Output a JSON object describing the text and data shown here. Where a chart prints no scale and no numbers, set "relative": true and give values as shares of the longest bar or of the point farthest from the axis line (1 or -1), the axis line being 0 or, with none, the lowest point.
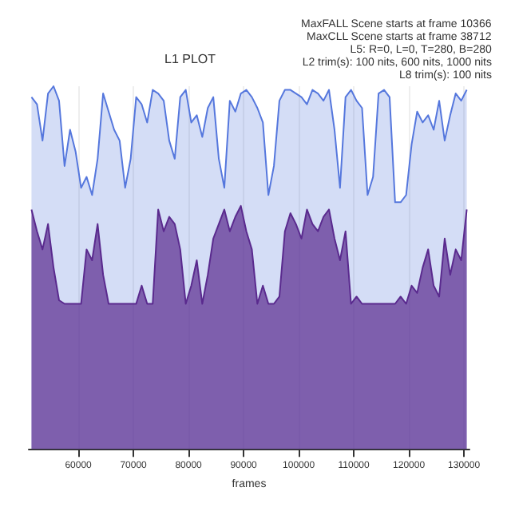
{
  "chart_data": {
    "type": "area",
    "title": "L1 PLOT",
    "xlabel": "frames",
    "relative": true,
    "annotations": [
      "MaxFALL Scene starts at frame 10366",
      "MaxCLL Scene starts at frame 38712",
      "L5: R=0, L=0, T=280, B=280",
      "L2 trim(s): 100 nits, 600 nits, 1000 nits",
      "L8 trim(s): 100 nits"
    ],
    "x": [
      51500,
      52500,
      53500,
      54500,
      55500,
      56500,
      57500,
      58500,
      59500,
      60500,
      61500,
      62500,
      63500,
      64500,
      65500,
      66500,
      67500,
      68500,
      69500,
      70500,
      71500,
      72500,
      73500,
      74500,
      75500,
      76500,
      77500,
      78500,
      79500,
      80500,
      81500,
      82500,
      83500,
      84500,
      85500,
      86500,
      87500,
      88500,
      89500,
      90500,
      91500,
      92500,
      93500,
      94500,
      95500,
      96500,
      97500,
      98500,
      99500,
      100500,
      101500,
      102500,
      103500,
      104500,
      105500,
      106500,
      107500,
      108500,
      109500,
      110500,
      111500,
      112500,
      113500,
      114500,
      115500,
      116500,
      117500,
      118500,
      119500,
      120500,
      121500,
      122500,
      123500,
      124500,
      125500,
      126500,
      127500,
      128500,
      129500,
      130500
    ],
    "xlim": [
      51000,
      131000
    ],
    "xticks": [
      60000,
      70000,
      80000,
      90000,
      100000,
      110000,
      120000,
      130000
    ],
    "grid": true,
    "line_style": "solid",
    "series": [
      {
        "color": "#5577dd",
        "values": [
          0.97,
          0.95,
          0.85,
          0.98,
          1,
          0.96,
          0.78,
          0.88,
          0.82,
          0.72,
          0.75,
          0.7,
          0.8,
          0.98,
          0.93,
          0.88,
          0.85,
          0.72,
          0.8,
          0.97,
          0.95,
          0.9,
          0.99,
          0.98,
          0.96,
          0.85,
          0.8,
          0.97,
          0.99,
          0.9,
          0.92,
          0.86,
          0.94,
          0.97,
          0.8,
          0.72,
          0.96,
          0.93,
          0.98,
          0.99,
          0.97,
          0.94,
          0.9,
          0.7,
          0.78,
          0.96,
          0.99,
          0.99,
          0.98,
          0.97,
          0.95,
          0.99,
          0.98,
          0.96,
          0.99,
          0.88,
          0.72,
          0.97,
          0.99,
          0.96,
          0.94,
          0.7,
          0.75,
          0.98,
          0.99,
          0.97,
          0.68,
          0.68,
          0.7,
          0.84,
          0.93,
          0.9,
          0.92,
          0.88,
          0.96,
          0.85,
          0.92,
          0.98,
          0.96,
          0.99
        ]
      },
      {
        "color": "#5a2a8e",
        "values": [
          0.66,
          0.6,
          0.55,
          0.62,
          0.5,
          0.41,
          0.4,
          0.4,
          0.4,
          0.4,
          0.55,
          0.52,
          0.62,
          0.48,
          0.4,
          0.4,
          0.4,
          0.4,
          0.4,
          0.4,
          0.45,
          0.4,
          0.4,
          0.66,
          0.6,
          0.64,
          0.62,
          0.55,
          0.4,
          0.45,
          0.52,
          0.4,
          0.48,
          0.58,
          0.62,
          0.66,
          0.6,
          0.64,
          0.67,
          0.6,
          0.55,
          0.4,
          0.45,
          0.4,
          0.4,
          0.42,
          0.6,
          0.65,
          0.62,
          0.58,
          0.66,
          0.62,
          0.6,
          0.64,
          0.66,
          0.58,
          0.52,
          0.6,
          0.4,
          0.42,
          0.4,
          0.4,
          0.4,
          0.4,
          0.4,
          0.4,
          0.4,
          0.42,
          0.4,
          0.45,
          0.43,
          0.5,
          0.55,
          0.45,
          0.42,
          0.58,
          0.48,
          0.55,
          0.52,
          0.66
        ]
      }
    ]
  }
}
